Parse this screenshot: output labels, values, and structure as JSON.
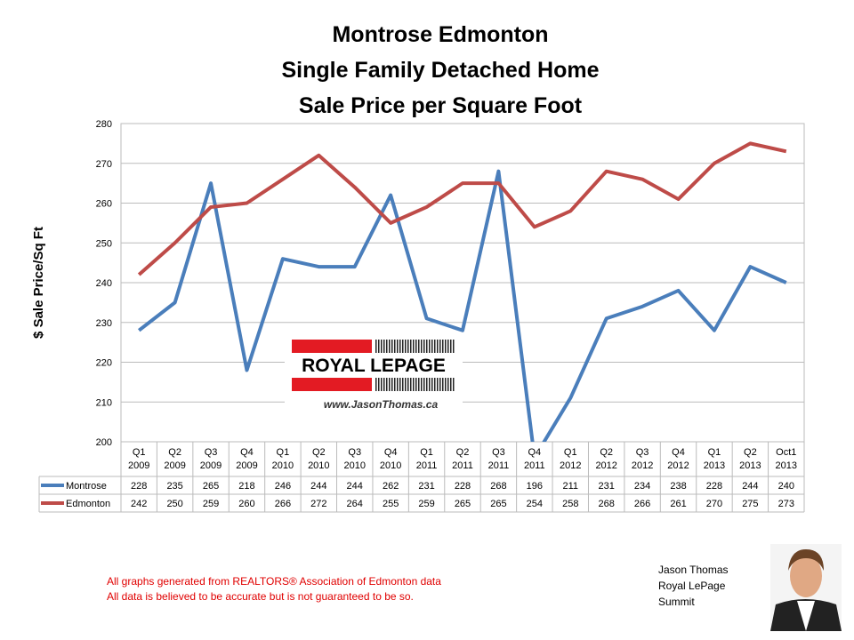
{
  "chart_data": {
    "type": "line",
    "title_lines": [
      "Montrose Edmonton",
      "Single Family Detached Home",
      "Sale Price per Square Foot"
    ],
    "ylabel": "$ Sale Price/Sq Ft",
    "categories": [
      "Q1 2009",
      "Q2 2009",
      "Q3 2009",
      "Q4 2009",
      "Q1 2010",
      "Q2 2010",
      "Q3 2010",
      "Q4 2010",
      "Q1 2011",
      "Q2 2011",
      "Q3 2011",
      "Q4 2011",
      "Q1 2012",
      "Q2 2012",
      "Q3 2012",
      "Q4 2012",
      "Q1 2013",
      "Q2 2013",
      "Oct1 2013"
    ],
    "series": [
      {
        "name": "Montrose",
        "color": "#4a7ebb",
        "values": [
          228,
          235,
          265,
          218,
          246,
          244,
          244,
          262,
          231,
          228,
          268,
          196,
          211,
          231,
          234,
          238,
          228,
          244,
          240
        ]
      },
      {
        "name": "Edmonton",
        "color": "#be4b48",
        "values": [
          242,
          250,
          259,
          260,
          266,
          272,
          264,
          255,
          259,
          265,
          265,
          254,
          258,
          268,
          266,
          261,
          270,
          275,
          273
        ]
      }
    ],
    "ylim": [
      200,
      280
    ],
    "yticks": [
      200,
      210,
      220,
      230,
      240,
      250,
      260,
      270,
      280
    ],
    "grid": true
  },
  "logo": {
    "brand": "ROYAL LEPAGE",
    "url": "www.JasonThomas.ca"
  },
  "footer": {
    "notes": [
      "All graphs generated from REALTORS® Association of Edmonton data",
      "All data is believed to be accurate but is not guaranteed to be so."
    ],
    "agent": [
      "Jason Thomas",
      "Royal LePage",
      "Summit"
    ]
  }
}
